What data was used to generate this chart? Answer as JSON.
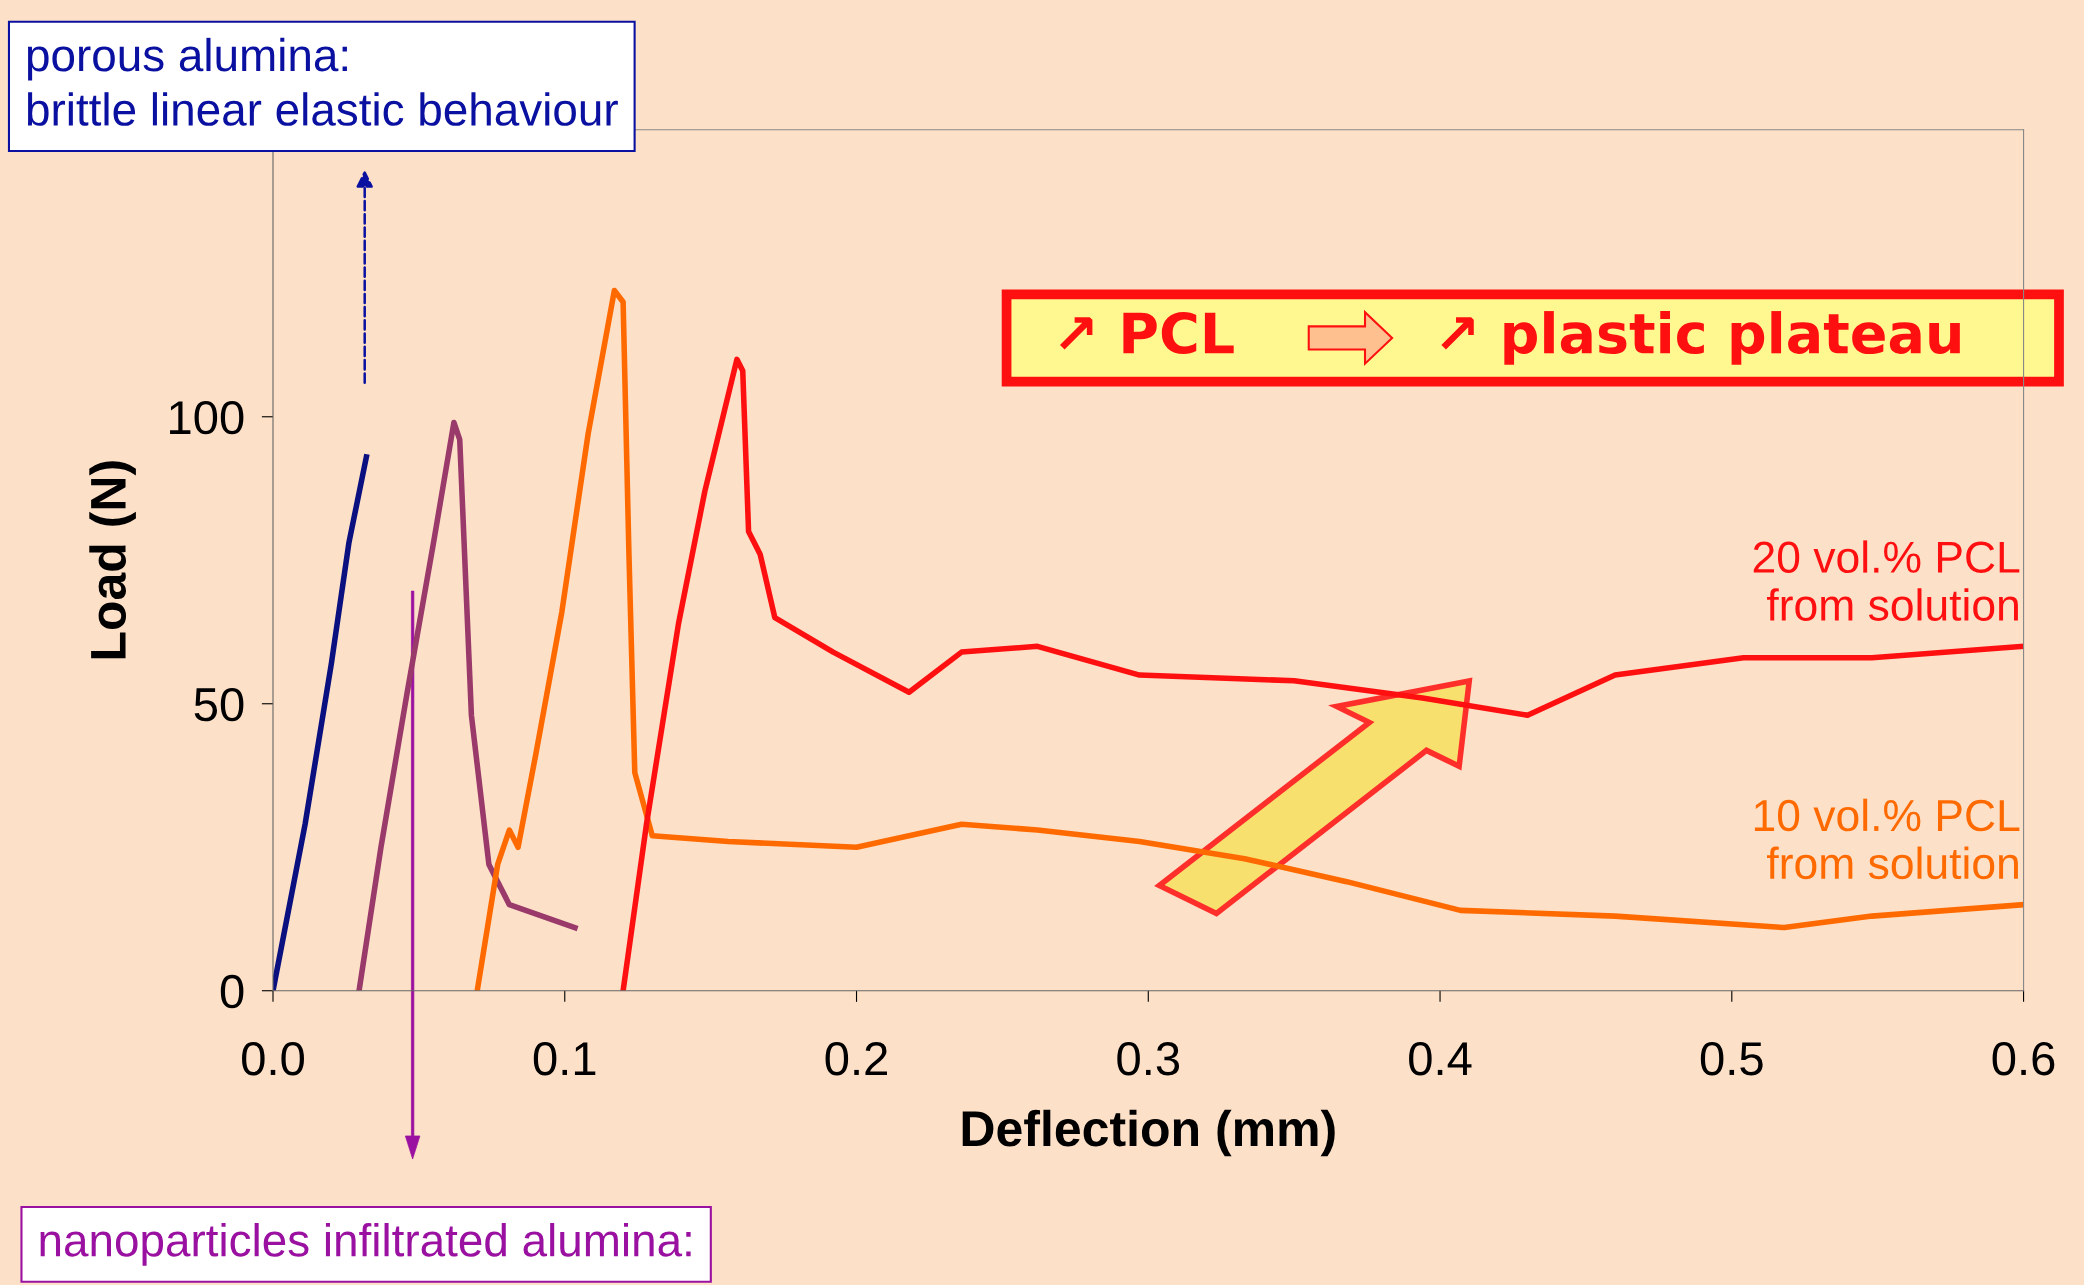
{
  "chart_data": {
    "type": "line",
    "xlabel": "Deflection (mm)",
    "ylabel": "Load (N)",
    "xlim": [
      0,
      0.6
    ],
    "xticks": [
      {
        "value": 0,
        "label": "0.0"
      },
      0.1,
      0.2,
      0.3,
      0.4,
      0.5,
      0.6
    ],
    "ylim": [
      0,
      150
    ],
    "yticks": [
      0,
      50,
      100
    ],
    "grid": false,
    "legend": false,
    "marker": "none",
    "line_style": "solid",
    "annotations": [
      "porous alumina:\nbrittle linear elastic behaviour",
      "nanoparticles infiltrated alumina:",
      "↗ PCL",
      "↗ plastic plateau"
    ],
    "series": [
      {
        "color": "#0a1080",
        "x": [
          0,
          0.011,
          0.02,
          0.026,
          0.032
        ],
        "values": [
          0,
          29,
          57,
          78,
          93
        ]
      },
      {
        "color": "#9a3a6a",
        "x": [
          0.0295,
          0.037,
          0.046,
          0.055,
          0.062,
          0.064,
          0.068,
          0.074,
          0.081,
          0.1035
        ],
        "values": [
          0,
          25,
          52,
          78,
          99,
          96,
          48,
          22,
          15,
          11
        ]
      },
      {
        "name": "10 vol.% PCL\nfrom solution",
        "color": "#ff6a00",
        "x": [
          0.07,
          0.077,
          0.081,
          0.084,
          0.09,
          0.099,
          0.108,
          0.117,
          0.12,
          0.122,
          0.124,
          0.13,
          0.156,
          0.2,
          0.236,
          0.262,
          0.297,
          0.333,
          0.368,
          0.407,
          0.46,
          0.518,
          0.548,
          0.6
        ],
        "values": [
          0,
          22,
          28,
          25,
          41,
          66,
          97,
          122,
          120,
          76,
          38,
          27,
          26,
          25,
          29,
          28,
          26,
          23,
          19,
          14,
          13,
          11,
          13,
          15
        ]
      },
      {
        "name": "20 vol.% PCL\nfrom solution",
        "color": "#ff1010",
        "x": [
          0.12,
          0.128,
          0.139,
          0.148,
          0.159,
          0.161,
          0.163,
          0.167,
          0.172,
          0.192,
          0.218,
          0.236,
          0.262,
          0.297,
          0.35,
          0.394,
          0.43,
          0.46,
          0.504,
          0.548,
          0.6
        ],
        "values": [
          0,
          29,
          64,
          87,
          110,
          108,
          80,
          76,
          65,
          59,
          52,
          59,
          60,
          55,
          54,
          51,
          48,
          55,
          58,
          58,
          60
        ]
      }
    ]
  }
}
